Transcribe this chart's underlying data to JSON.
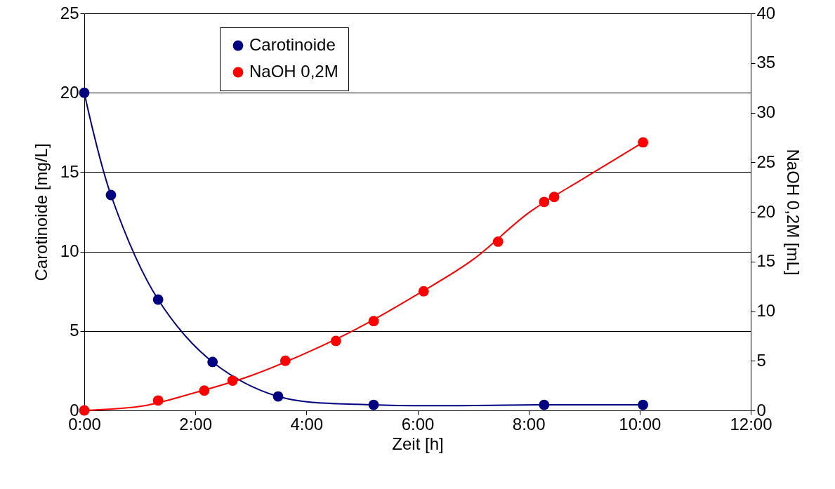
{
  "chart_data": {
    "type": "line",
    "xlabel": "Zeit [h]",
    "ylabel": "Carotinoide [mg/L]",
    "y2label": "NaOH 0,2M [mL]",
    "xlim": [
      0,
      12
    ],
    "xticks": [
      {
        "value": 0,
        "label": "0:00"
      },
      {
        "value": 2,
        "label": "2:00"
      },
      {
        "value": 4,
        "label": "4:00"
      },
      {
        "value": 6,
        "label": "6:00"
      },
      {
        "value": 8,
        "label": "8:00"
      },
      {
        "value": 10,
        "label": "10:00"
      },
      {
        "value": 12,
        "label": "12:00"
      }
    ],
    "ylim": [
      0,
      25
    ],
    "yticks": [
      0,
      5,
      10,
      15,
      20,
      25
    ],
    "y2lim": [
      0,
      40
    ],
    "y2ticks": [
      0,
      5,
      10,
      15,
      20,
      25,
      30,
      35,
      40
    ],
    "grid": "y",
    "legend": "top left",
    "marker": "circle",
    "series": [
      {
        "name": "Carotinoide",
        "color": "#000080",
        "x": [
          0,
          0.48,
          1.33,
          2.31,
          3.49,
          5.21,
          8.28,
          10.06
        ],
        "values": [
          20.0,
          13.56,
          6.98,
          3.05,
          0.88,
          0.35,
          0.35,
          0.35
        ]
      },
      {
        "name": "NaOH 0,2M",
        "color": "#ff0000",
        "type": "scatter",
        "axis": "y2",
        "x": [
          0,
          1.33,
          2.16,
          2.67,
          3.62,
          4.53,
          5.21,
          6.11,
          7.45,
          8.28,
          8.46,
          10.06
        ],
        "values": [
          0,
          1,
          2,
          3,
          5,
          7,
          9,
          12,
          17,
          21,
          21.5,
          27
        ]
      },
      {
        "color": "#ff0000",
        "type": "line",
        "axis": "y2",
        "marker": "none",
        "x": [
          0,
          1,
          2,
          3,
          4,
          5,
          6,
          7,
          8,
          9,
          10.06
        ],
        "values": [
          0,
          0.4,
          1.8,
          3.5,
          5.8,
          8.5,
          11.7,
          15.2,
          19.9,
          23.4,
          27
        ]
      }
    ]
  }
}
